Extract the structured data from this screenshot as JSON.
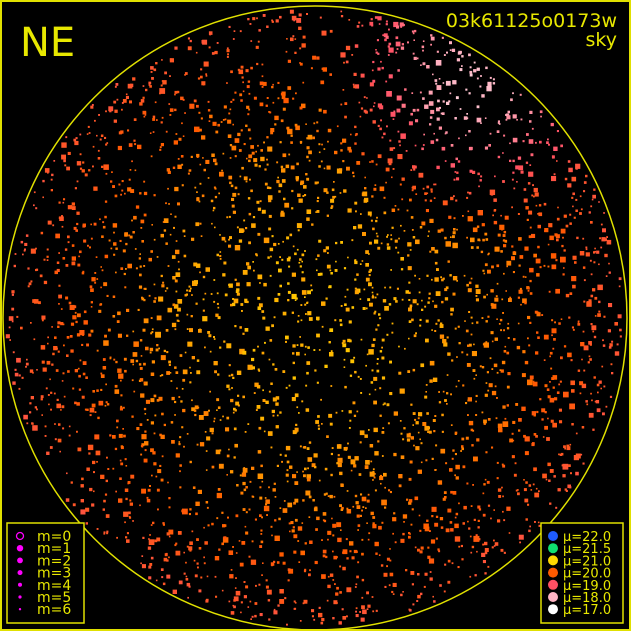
{
  "title": "NE",
  "image_id": "03k61125o0173w",
  "subtitle": "sky",
  "colors": {
    "frame": "#e0e000",
    "text": "#e8e800",
    "magnitude_marker": "#ff00ff"
  },
  "chart_data": {
    "type": "scatter",
    "title": "NE",
    "grid": false,
    "magnitude_legend": {
      "position": "bottom-left",
      "entries": [
        "m=0",
        "m=1",
        "m=2",
        "m=3",
        "m=4",
        "m=5",
        "m=6"
      ]
    },
    "brightness_legend": {
      "position": "bottom-right",
      "entries": [
        {
          "label": "μ=22.0",
          "value": 22.0,
          "color": "#1f5cff"
        },
        {
          "label": "μ=21.5",
          "value": 21.5,
          "color": "#10e070"
        },
        {
          "label": "μ=21.0",
          "value": 21.0,
          "color": "#ffd800"
        },
        {
          "label": "μ=20.0",
          "value": 20.0,
          "color": "#ff5a00"
        },
        {
          "label": "μ=19.0",
          "value": 19.0,
          "color": "#ff5064"
        },
        {
          "label": "μ=18.0",
          "value": 18.0,
          "color": "#ffb4c4"
        },
        {
          "label": "μ=17.0",
          "value": 17.0,
          "color": "#ffffff"
        }
      ]
    }
  }
}
